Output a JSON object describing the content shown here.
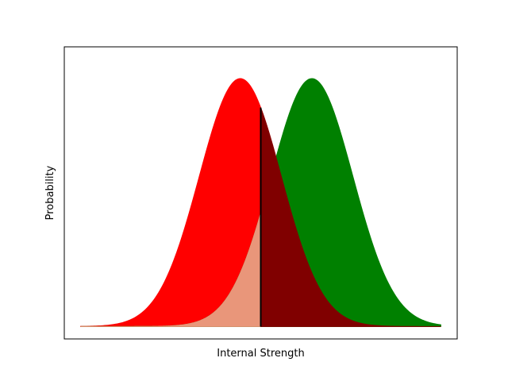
{
  "chart_data": {
    "type": "area",
    "title": "",
    "xlabel": "Internal Strength",
    "ylabel": "Probability",
    "xlim": [
      -4.3,
      5.3
    ],
    "ylim": [
      -0.02,
      0.45
    ],
    "x_ticks_shown": false,
    "y_ticks_shown": false,
    "grid": false,
    "legend": "none",
    "criterion_x": 0.5,
    "series": [
      {
        "distribution": "normal",
        "mean": 0,
        "sd": 1,
        "x_range": [
          -3.9,
          4.9
        ],
        "color": "#ff0000",
        "shaded_right_of_criterion_color": "#800000"
      },
      {
        "distribution": "normal",
        "mean": 1.75,
        "sd": 1,
        "x_range": [
          -3.9,
          4.9
        ],
        "color": "#008000",
        "shaded_left_of_criterion_color": "#e9967a"
      }
    ]
  }
}
